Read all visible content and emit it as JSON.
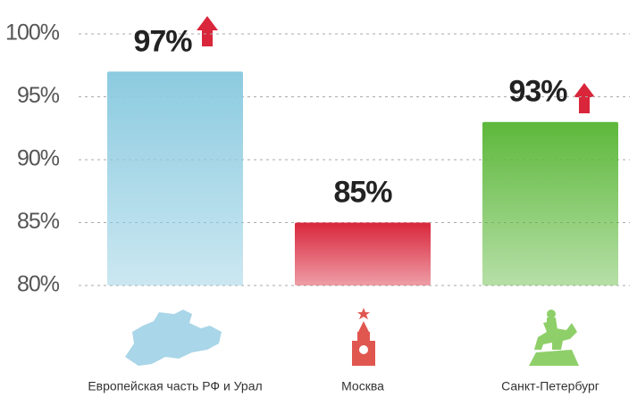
{
  "chart_data": {
    "type": "bar",
    "categories": [
      "Европейская часть РФ и Урал",
      "Москва",
      "Санкт-Петербург"
    ],
    "values": [
      97,
      85,
      93
    ],
    "value_labels": [
      "97%",
      "85%",
      "93%"
    ],
    "colors": [
      "#8ccbe0",
      "#d9263b",
      "#5db83b"
    ],
    "ylim": [
      80,
      100
    ],
    "yticks": [
      {
        "value": 80,
        "label": "80%"
      },
      {
        "value": 85,
        "label": "85%"
      },
      {
        "value": 90,
        "label": "90%"
      },
      {
        "value": 95,
        "label": "95%"
      },
      {
        "value": 100,
        "label": "100%"
      }
    ],
    "grid": true
  }
}
